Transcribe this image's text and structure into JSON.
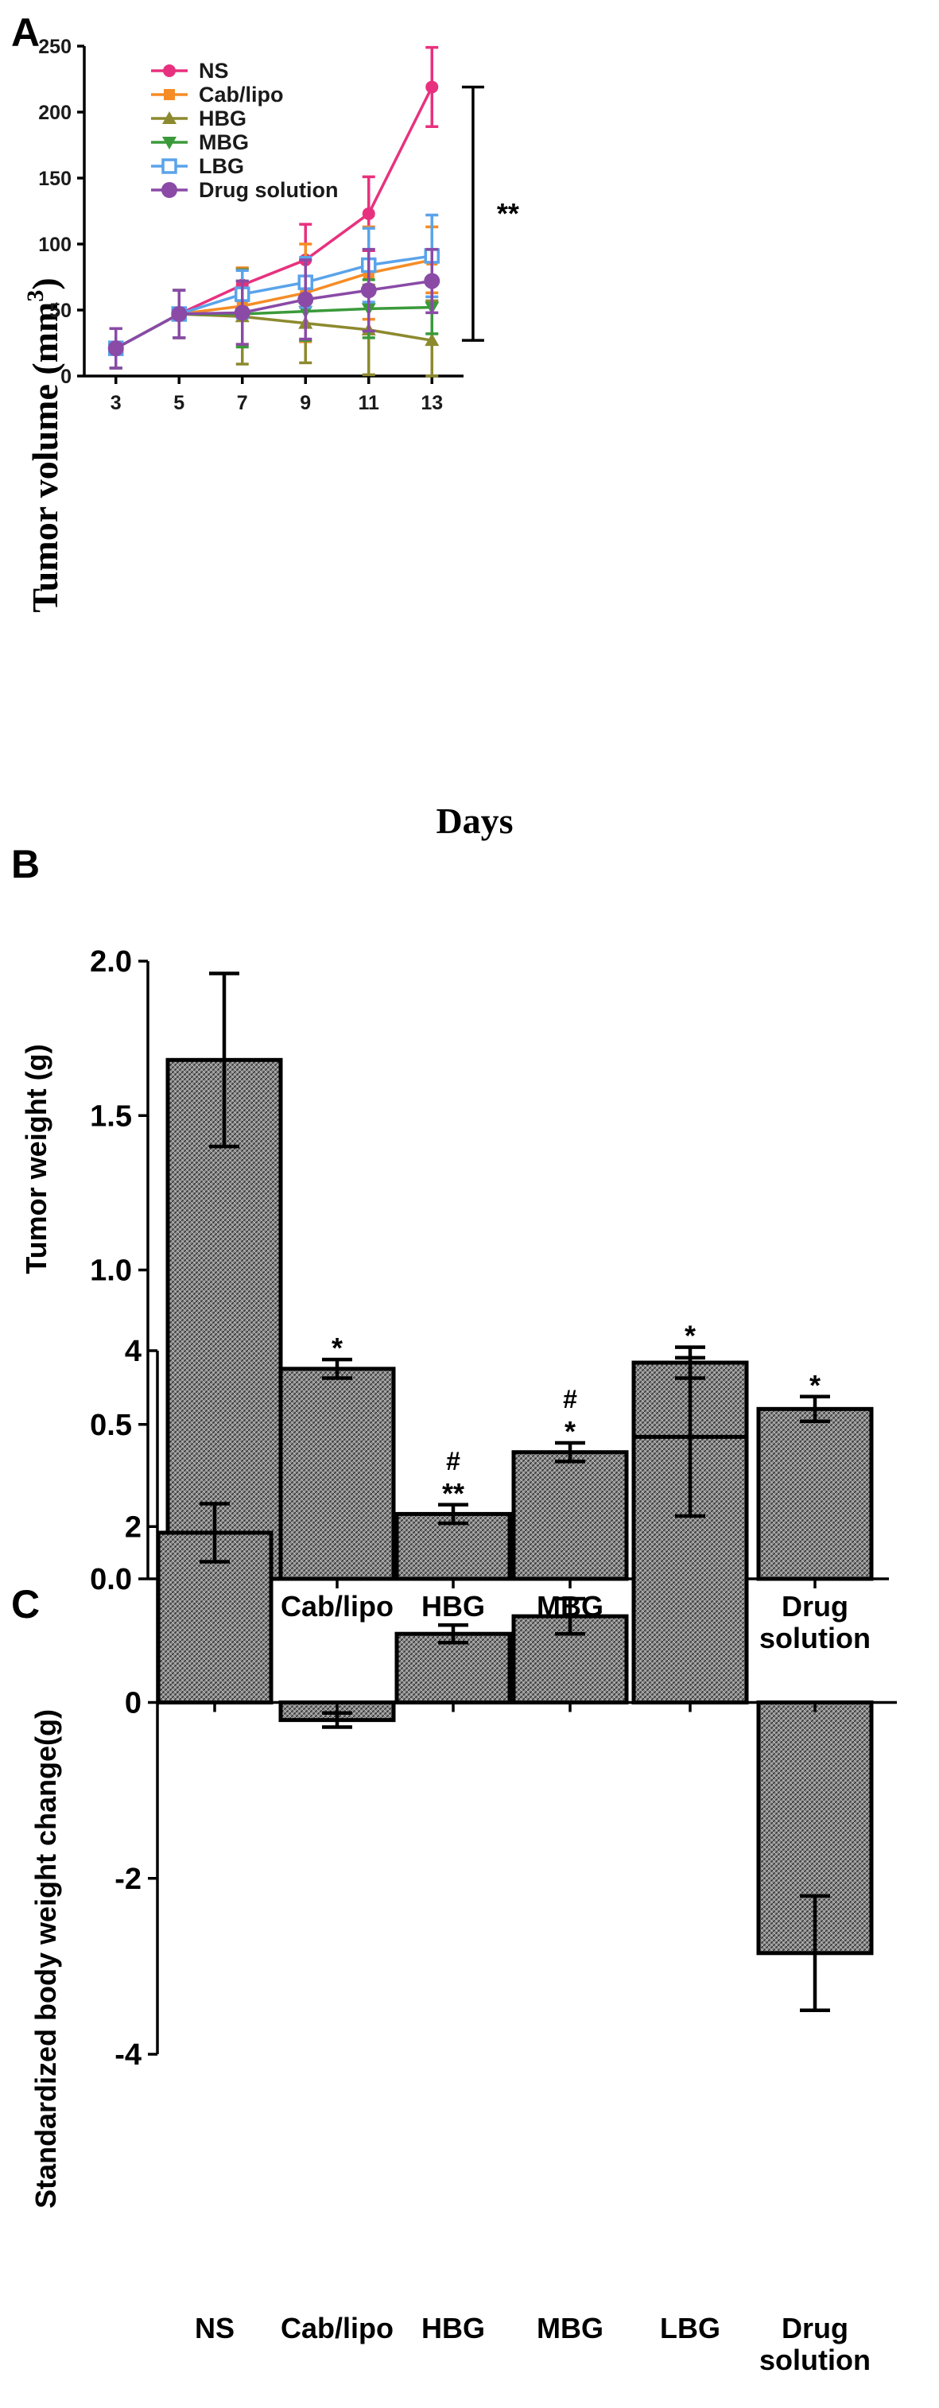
{
  "panels": {
    "a_letter": "A",
    "b_letter": "B",
    "c_letter": "C"
  },
  "colors": {
    "NS": "#e8317e",
    "Cab/lipo": "#f58c26",
    "HBG": "#8c8a2e",
    "MBG": "#3a9a3a",
    "LBG": "#5aa3ea",
    "Drug solution": "#8a4aa6"
  },
  "chart_data": [
    {
      "id": "A",
      "type": "line",
      "title": "",
      "xlabel": "Days",
      "ylabel": "Tumor volume (mm",
      "ylabel_sup": "3",
      "ylabel_end": ")",
      "xlim": [
        2,
        14
      ],
      "ylim": [
        0,
        250
      ],
      "x_ticks": [
        3,
        5,
        7,
        9,
        11,
        13
      ],
      "y_ticks": [
        0,
        50,
        100,
        150,
        200,
        250
      ],
      "legend_position": "top-left",
      "grid": false,
      "bracket": {
        "x": 14.3,
        "y_top": 219,
        "y_bottom": 27,
        "label": "**"
      },
      "series": [
        {
          "name": "NS",
          "marker": "circle",
          "x": [
            3,
            5,
            7,
            9,
            11,
            13
          ],
          "y": [
            21,
            47,
            69,
            88,
            123,
            219
          ],
          "err": [
            15,
            18,
            12,
            27,
            28,
            30
          ]
        },
        {
          "name": "Cab/lipo",
          "marker": "square",
          "x": [
            3,
            5,
            7,
            9,
            11,
            13
          ],
          "y": [
            21,
            47,
            53,
            63,
            78,
            88
          ],
          "err": [
            15,
            18,
            29,
            37,
            35,
            25
          ]
        },
        {
          "name": "HBG",
          "marker": "triangle-up",
          "x": [
            3,
            5,
            7,
            9,
            11,
            13
          ],
          "y": [
            21,
            47,
            45,
            40,
            35,
            27
          ],
          "err": [
            15,
            18,
            36,
            30,
            34,
            30
          ]
        },
        {
          "name": "MBG",
          "marker": "triangle-down",
          "x": [
            3,
            5,
            7,
            9,
            11,
            13
          ],
          "y": [
            21,
            47,
            47,
            49,
            51,
            52
          ],
          "err": [
            15,
            18,
            25,
            22,
            22,
            20
          ]
        },
        {
          "name": "LBG",
          "marker": "open-square",
          "x": [
            3,
            5,
            7,
            9,
            11,
            13
          ],
          "y": [
            21,
            47,
            62,
            71,
            84,
            91
          ],
          "err": [
            15,
            18,
            18,
            19,
            28,
            31
          ]
        },
        {
          "name": "Drug solution",
          "marker": "large-circle",
          "x": [
            3,
            5,
            7,
            9,
            11,
            13
          ],
          "y": [
            21,
            47,
            48,
            58,
            65,
            72
          ],
          "err": [
            15,
            18,
            24,
            30,
            31,
            24
          ]
        }
      ]
    },
    {
      "id": "B",
      "type": "bar",
      "title": "",
      "xlabel": "",
      "ylabel": "Tumor weight (g)",
      "categories": [
        "NS",
        "Cab/lipo",
        "HBG",
        "MBG",
        "LBG",
        "Drug solution"
      ],
      "category_lines": [
        [
          "NS"
        ],
        [
          "Cab/lipo"
        ],
        [
          "HBG"
        ],
        [
          "MBG"
        ],
        [
          "LBG"
        ],
        [
          "Drug",
          "solution"
        ]
      ],
      "values": [
        1.68,
        0.68,
        0.21,
        0.41,
        0.7,
        0.55
      ],
      "err": [
        0.28,
        0.03,
        0.03,
        0.03,
        0.05,
        0.04
      ],
      "annotations": [
        [],
        [
          "*"
        ],
        [
          "#",
          "**"
        ],
        [
          "#",
          "*"
        ],
        [
          "*"
        ],
        [
          "*"
        ]
      ],
      "ylim": [
        0,
        2.0
      ],
      "y_ticks": [
        0.0,
        0.5,
        1.0,
        1.5,
        2.0
      ],
      "y_tick_labels": [
        "0.0",
        "0.5",
        "1.0",
        "1.5",
        "2.0"
      ],
      "grid": false
    },
    {
      "id": "C",
      "type": "bar",
      "title": "",
      "xlabel": "",
      "ylabel": "Standardized body weight change(g)",
      "categories": [
        "NS",
        "Cab/lipo",
        "HBG",
        "MBG",
        "LBG",
        "Drug solution"
      ],
      "category_lines": [
        [
          "NS"
        ],
        [
          "Cab/lipo"
        ],
        [
          "HBG"
        ],
        [
          "MBG"
        ],
        [
          "LBG"
        ],
        [
          "Drug",
          "solution"
        ]
      ],
      "values": [
        1.93,
        -0.2,
        0.78,
        0.98,
        3.02,
        -2.85
      ],
      "err": [
        0.33,
        0.08,
        0.1,
        0.2,
        0.9,
        0.65
      ],
      "ylim": [
        -4,
        4
      ],
      "y_ticks": [
        -4,
        -2,
        0,
        2,
        4
      ],
      "y_tick_labels": [
        "-4",
        "-2",
        "0",
        "2",
        "4"
      ],
      "grid": false
    }
  ]
}
